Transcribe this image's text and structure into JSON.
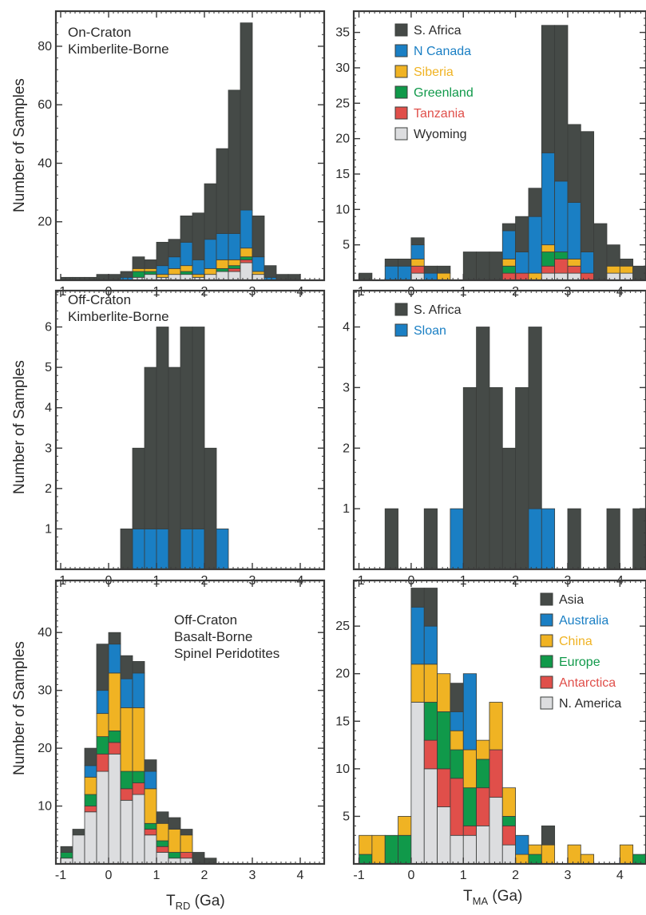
{
  "axes": {
    "y_label": "Number of Samples",
    "x_label_left": {
      "main": "T",
      "sub": "RD",
      "unit": " (Ga)"
    },
    "x_label_right": {
      "main": "T",
      "sub": "MA",
      "unit": " (Ga)"
    }
  },
  "colors": {
    "S. Africa": "#454a47",
    "Asia": "#454a47",
    "N Canada": "#1a7fc4",
    "Sloan": "#1a7fc4",
    "Australia": "#1a7fc4",
    "Siberia": "#f0b323",
    "China": "#f0b323",
    "Greenland": "#10994a",
    "Europe": "#10994a",
    "Tanzania": "#e04f4a",
    "Antarctica": "#e04f4a",
    "Wyoming": "#dcdddf",
    "N. America": "#dcdddf"
  },
  "chart_data": [
    {
      "id": "rd-on-craton",
      "type": "bar",
      "stacked": true,
      "title": "On-Craton\nKimberlite-Borne",
      "xlabel": "",
      "ylabel": "Number of Samples",
      "bin_width": 0.25,
      "xlim": [
        -1.1,
        4.5
      ],
      "ylim": [
        0,
        92
      ],
      "xticks": [
        -1,
        0,
        1,
        2,
        3,
        4
      ],
      "yticks": [
        20,
        40,
        60,
        80
      ],
      "bins": [
        -1.0,
        -0.75,
        -0.5,
        -0.25,
        0.0,
        0.25,
        0.5,
        0.75,
        1.0,
        1.25,
        1.5,
        1.75,
        2.0,
        2.25,
        2.5,
        2.75,
        3.0,
        3.25,
        3.5,
        3.75,
        4.0
      ],
      "series": [
        {
          "key": "Wyoming",
          "values": [
            0,
            0,
            0,
            0,
            0,
            0,
            1,
            2,
            1,
            2,
            2,
            1,
            2,
            3,
            3,
            6,
            2,
            0,
            0,
            0,
            0
          ]
        },
        {
          "key": "Tanzania",
          "values": [
            0,
            0,
            0,
            0,
            0,
            0,
            0,
            0,
            0,
            0,
            0,
            0,
            0,
            0,
            1,
            1,
            0,
            0,
            0,
            0,
            0
          ]
        },
        {
          "key": "Greenland",
          "values": [
            0,
            0,
            0,
            0,
            0,
            0,
            2,
            1,
            0,
            0,
            1,
            0,
            0,
            1,
            1,
            1,
            0,
            0,
            0,
            0,
            0
          ]
        },
        {
          "key": "Siberia",
          "values": [
            0,
            0,
            0,
            0,
            0,
            0,
            1,
            1,
            1,
            2,
            2,
            1,
            2,
            3,
            2,
            3,
            1,
            0,
            0,
            0,
            0
          ]
        },
        {
          "key": "N Canada",
          "values": [
            0,
            0,
            0,
            0,
            0,
            1,
            0,
            0,
            3,
            4,
            8,
            5,
            10,
            9,
            9,
            13,
            5,
            1,
            0,
            0,
            0
          ]
        },
        {
          "key": "S. Africa",
          "values": [
            1,
            1,
            1,
            2,
            2,
            2,
            4,
            3,
            8,
            6,
            9,
            16,
            19,
            29,
            49,
            64,
            14,
            4,
            2,
            2,
            0
          ]
        }
      ]
    },
    {
      "id": "ma-on-craton",
      "type": "bar",
      "stacked": true,
      "xlabel": "",
      "ylabel": "",
      "bin_width": 0.25,
      "xlim": [
        -1.1,
        4.5
      ],
      "ylim": [
        0,
        38
      ],
      "xticks": [
        -1,
        0,
        1,
        2,
        3,
        4
      ],
      "yticks": [
        5,
        10,
        15,
        20,
        25,
        30,
        35
      ],
      "legend": [
        "S. Africa",
        "N Canada",
        "Siberia",
        "Greenland",
        "Tanzania",
        "Wyoming"
      ],
      "legend_position": "top-left",
      "bins": [
        -1.0,
        -0.75,
        -0.5,
        -0.25,
        0.0,
        0.25,
        0.5,
        0.75,
        1.0,
        1.25,
        1.5,
        1.75,
        2.0,
        2.25,
        2.5,
        2.75,
        3.0,
        3.25,
        3.5,
        3.75,
        4.0,
        4.25
      ],
      "series": [
        {
          "key": "Wyoming",
          "values": [
            0,
            0,
            0,
            0,
            1,
            0,
            0,
            0,
            0,
            0,
            0,
            0,
            0,
            0,
            1,
            1,
            1,
            0,
            0,
            1,
            1,
            0
          ]
        },
        {
          "key": "Tanzania",
          "values": [
            0,
            0,
            0,
            0,
            1,
            0,
            0,
            0,
            0,
            0,
            0,
            1,
            1,
            0,
            1,
            2,
            1,
            1,
            0,
            0,
            0,
            0
          ]
        },
        {
          "key": "Greenland",
          "values": [
            0,
            0,
            0,
            0,
            0,
            0,
            0,
            0,
            0,
            0,
            0,
            1,
            0,
            0,
            2,
            1,
            0,
            0,
            0,
            0,
            0,
            0
          ]
        },
        {
          "key": "Siberia",
          "values": [
            0,
            0,
            0,
            0,
            1,
            0,
            1,
            0,
            0,
            0,
            0,
            1,
            0,
            1,
            1,
            0,
            1,
            0,
            0,
            1,
            1,
            0
          ]
        },
        {
          "key": "N Canada",
          "values": [
            0,
            0,
            2,
            2,
            2,
            1,
            0,
            0,
            0,
            0,
            0,
            4,
            3,
            8,
            13,
            10,
            8,
            3,
            0,
            0,
            0,
            0
          ]
        },
        {
          "key": "S. Africa",
          "values": [
            1,
            0,
            1,
            1,
            1,
            1,
            1,
            0,
            4,
            4,
            4,
            1,
            5,
            4,
            18,
            22,
            11,
            17,
            8,
            3,
            1,
            2
          ]
        }
      ]
    },
    {
      "id": "rd-off-craton",
      "type": "bar",
      "stacked": true,
      "title": "Off-Craton\nKimberlite-Borne",
      "xlabel": "",
      "ylabel": "Number of Samples",
      "bin_width": 0.25,
      "xlim": [
        -1.1,
        4.5
      ],
      "ylim": [
        0,
        6.9
      ],
      "xticks": [
        -1,
        0,
        1,
        2,
        3,
        4
      ],
      "yticks": [
        1,
        2,
        3,
        4,
        5,
        6
      ],
      "bins": [
        0.25,
        0.5,
        0.75,
        1.0,
        1.25,
        1.5,
        1.75,
        2.0,
        2.25
      ],
      "series": [
        {
          "key": "Sloan",
          "values": [
            0,
            1,
            1,
            1,
            0,
            1,
            1,
            0,
            1
          ]
        },
        {
          "key": "S. Africa",
          "values": [
            1,
            2,
            4,
            5,
            5,
            5,
            5,
            3,
            0
          ]
        }
      ]
    },
    {
      "id": "ma-off-craton",
      "type": "bar",
      "stacked": true,
      "xlabel": "",
      "ylabel": "",
      "bin_width": 0.25,
      "xlim": [
        -1.1,
        4.5
      ],
      "ylim": [
        0,
        4.6
      ],
      "xticks": [
        -1,
        0,
        1,
        2,
        3,
        4
      ],
      "yticks": [
        1,
        2,
        3,
        4
      ],
      "legend": [
        "S. Africa",
        "Sloan"
      ],
      "legend_position": "top-left",
      "bins": [
        -0.75,
        -0.5,
        -0.25,
        0.0,
        0.25,
        0.5,
        0.75,
        1.0,
        1.25,
        1.5,
        1.75,
        2.0,
        2.25,
        2.5,
        2.75,
        3.0,
        3.25,
        3.5,
        3.75,
        4.0,
        4.25,
        4.5
      ],
      "series": [
        {
          "key": "Sloan",
          "values": [
            0,
            0,
            0,
            0,
            0,
            0,
            1,
            0,
            0,
            0,
            0,
            0,
            1,
            1,
            0,
            0,
            0,
            0,
            0,
            0,
            0,
            0
          ]
        },
        {
          "key": "S. Africa",
          "values": [
            0,
            1,
            0,
            0,
            1,
            0,
            0,
            3,
            4,
            3,
            2,
            3,
            3,
            0,
            0,
            1,
            0,
            0,
            1,
            0,
            1,
            0
          ]
        }
      ]
    },
    {
      "id": "rd-basalt",
      "type": "bar",
      "stacked": true,
      "title": "Off-Craton\nBasalt-Borne\nSpinel Peridotites",
      "xlabel": "T_RD (Ga)",
      "ylabel": "Number of Samples",
      "bin_width": 0.25,
      "xlim": [
        -1.1,
        4.5
      ],
      "ylim": [
        0,
        49
      ],
      "xticks": [
        -1,
        0,
        1,
        2,
        3,
        4
      ],
      "yticks": [
        10,
        20,
        30,
        40
      ],
      "bins": [
        -1.0,
        -0.75,
        -0.5,
        -0.25,
        0.0,
        0.25,
        0.5,
        0.75,
        1.0,
        1.25,
        1.5,
        1.75,
        2.0
      ],
      "series": [
        {
          "key": "N. America",
          "values": [
            1,
            5,
            9,
            16,
            19,
            11,
            12,
            5,
            2,
            1,
            1,
            0,
            0
          ]
        },
        {
          "key": "Antarctica",
          "values": [
            0,
            0,
            1,
            3,
            2,
            2,
            2,
            1,
            1,
            0,
            1,
            0,
            0
          ]
        },
        {
          "key": "Europe",
          "values": [
            1,
            0,
            2,
            3,
            2,
            3,
            2,
            1,
            1,
            1,
            0,
            0,
            0
          ]
        },
        {
          "key": "China",
          "values": [
            0,
            0,
            3,
            4,
            10,
            11,
            11,
            6,
            3,
            4,
            3,
            0,
            0
          ]
        },
        {
          "key": "Australia",
          "values": [
            0,
            0,
            2,
            4,
            5,
            5,
            6,
            3,
            0,
            0,
            0,
            0,
            0
          ]
        },
        {
          "key": "Asia",
          "values": [
            1,
            1,
            3,
            8,
            2,
            4,
            2,
            2,
            2,
            2,
            1,
            2,
            1
          ]
        }
      ]
    },
    {
      "id": "ma-basalt",
      "type": "bar",
      "stacked": true,
      "xlabel": "T_MA (Ga)",
      "ylabel": "",
      "bin_width": 0.25,
      "xlim": [
        -1.1,
        4.5
      ],
      "ylim": [
        0,
        29.8
      ],
      "xticks": [
        -1,
        0,
        1,
        2,
        3,
        4
      ],
      "yticks": [
        5,
        10,
        15,
        20,
        25
      ],
      "legend": [
        "Asia",
        "Australia",
        "China",
        "Europe",
        "Antarctica",
        "N. America"
      ],
      "legend_position": "top-right",
      "bins": [
        -1.0,
        -0.75,
        -0.5,
        -0.25,
        0.0,
        0.25,
        0.5,
        0.75,
        1.0,
        1.25,
        1.5,
        1.75,
        2.0,
        2.25,
        2.5,
        2.75,
        3.0,
        3.25,
        3.5,
        3.75,
        4.0,
        4.25
      ],
      "series": [
        {
          "key": "N. America",
          "values": [
            0,
            0,
            0,
            0,
            17,
            10,
            6,
            3,
            3,
            4,
            7,
            2,
            0,
            0,
            0,
            0,
            0,
            0,
            0,
            0,
            0,
            0
          ]
        },
        {
          "key": "Antarctica",
          "values": [
            0,
            0,
            0,
            0,
            0,
            3,
            4,
            6,
            1,
            4,
            5,
            2,
            0,
            0,
            0,
            0,
            0,
            0,
            0,
            0,
            0,
            0
          ]
        },
        {
          "key": "Europe",
          "values": [
            1,
            0,
            3,
            3,
            0,
            4,
            6,
            3,
            4,
            3,
            0,
            1,
            0,
            1,
            0,
            0,
            0,
            0,
            0,
            0,
            0,
            1
          ]
        },
        {
          "key": "China",
          "values": [
            2,
            3,
            0,
            2,
            4,
            4,
            4,
            2,
            4,
            2,
            5,
            3,
            1,
            1,
            2,
            0,
            2,
            1,
            0,
            0,
            2,
            0
          ]
        },
        {
          "key": "Australia",
          "values": [
            0,
            0,
            0,
            0,
            6,
            4,
            0,
            2,
            8,
            0,
            0,
            0,
            2,
            0,
            0,
            0,
            0,
            0,
            0,
            0,
            0,
            0
          ]
        },
        {
          "key": "Asia",
          "values": [
            0,
            0,
            0,
            0,
            2,
            4,
            0,
            3,
            0,
            0,
            0,
            0,
            0,
            0,
            2,
            0,
            0,
            0,
            0,
            0,
            0,
            0
          ]
        }
      ]
    }
  ]
}
